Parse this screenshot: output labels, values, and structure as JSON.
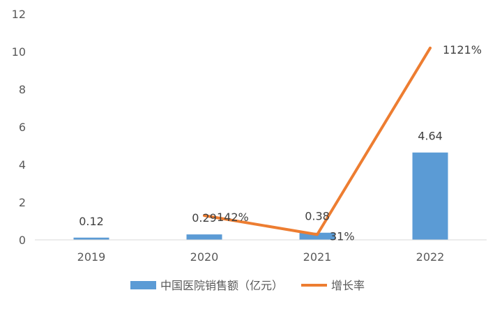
{
  "chart_data": {
    "type": "bar",
    "categories": [
      "2019",
      "2020",
      "2021",
      "2022"
    ],
    "series": [
      {
        "name": "中国医院销售额（亿元）",
        "type": "bar",
        "axis": "left",
        "values": [
          0.12,
          0.29,
          0.38,
          4.64
        ],
        "labels": [
          "0.12",
          "0.29",
          "0.38",
          "4.64"
        ],
        "color": "#5B9BD5"
      },
      {
        "name": "增长率",
        "type": "line",
        "axis": "secondary-hidden",
        "values": [
          null,
          142,
          31,
          1121
        ],
        "labels": [
          "",
          "142%",
          "31%",
          "1121%"
        ],
        "color": "#ED7D31"
      }
    ],
    "yticks": [
      "0",
      "2",
      "4",
      "6",
      "8",
      "10",
      "12"
    ],
    "ylim": [
      0,
      12
    ],
    "y2lim": [
      0,
      1320
    ],
    "grid": false,
    "legend": "bottom"
  }
}
